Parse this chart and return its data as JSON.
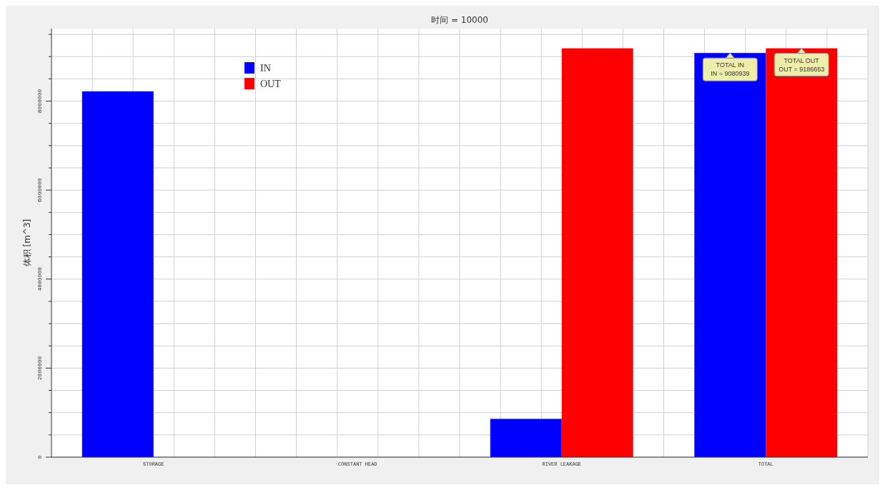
{
  "chart_data": {
    "type": "bar",
    "title": "时间 = 10000",
    "ylabel": "体积 [m^3]",
    "categories": [
      "STORAGE",
      "CONSTANT HEAD",
      "RIVER LEAKAGE",
      "TOTAL"
    ],
    "series": [
      {
        "name": "IN",
        "color": "#0000ff",
        "values": [
          8220000,
          0,
          860000,
          9080939
        ]
      },
      {
        "name": "OUT",
        "color": "#ff0000",
        "values": [
          0,
          0,
          9186653,
          9186653
        ]
      }
    ],
    "ylim": [
      0,
      9630000
    ],
    "yticks": [
      0,
      {
        "value": 500000,
        "label": null
      },
      {
        "value": 1000000,
        "label": null
      },
      {
        "value": 1500000,
        "label": null
      },
      {
        "value": 2000000,
        "label": "2000000"
      },
      {
        "value": 2500000,
        "label": null
      },
      {
        "value": 3000000,
        "label": null
      },
      {
        "value": 3500000,
        "label": null
      },
      {
        "value": 4000000,
        "label": "4000000"
      },
      {
        "value": 4500000,
        "label": null
      },
      {
        "value": 5000000,
        "label": null
      },
      {
        "value": 5500000,
        "label": null
      },
      {
        "value": 6000000,
        "label": "6000000"
      },
      {
        "value": 6500000,
        "label": null
      },
      {
        "value": 7000000,
        "label": null
      },
      {
        "value": 7500000,
        "label": null
      },
      {
        "value": 8000000,
        "label": "8000000"
      },
      {
        "value": 8500000,
        "label": null
      },
      {
        "value": 9000000,
        "label": null
      },
      {
        "value": 9500000,
        "label": null
      }
    ],
    "grid": true,
    "legend": "top left",
    "annotations": [
      {
        "text": "TOTAL IN\nIN = 9080939",
        "x": "TOTAL",
        "y": 9080939
      },
      {
        "text": "TOTAL OUT\nOUT = 9186653",
        "x": "TOTAL",
        "y": 9186653
      }
    ]
  }
}
